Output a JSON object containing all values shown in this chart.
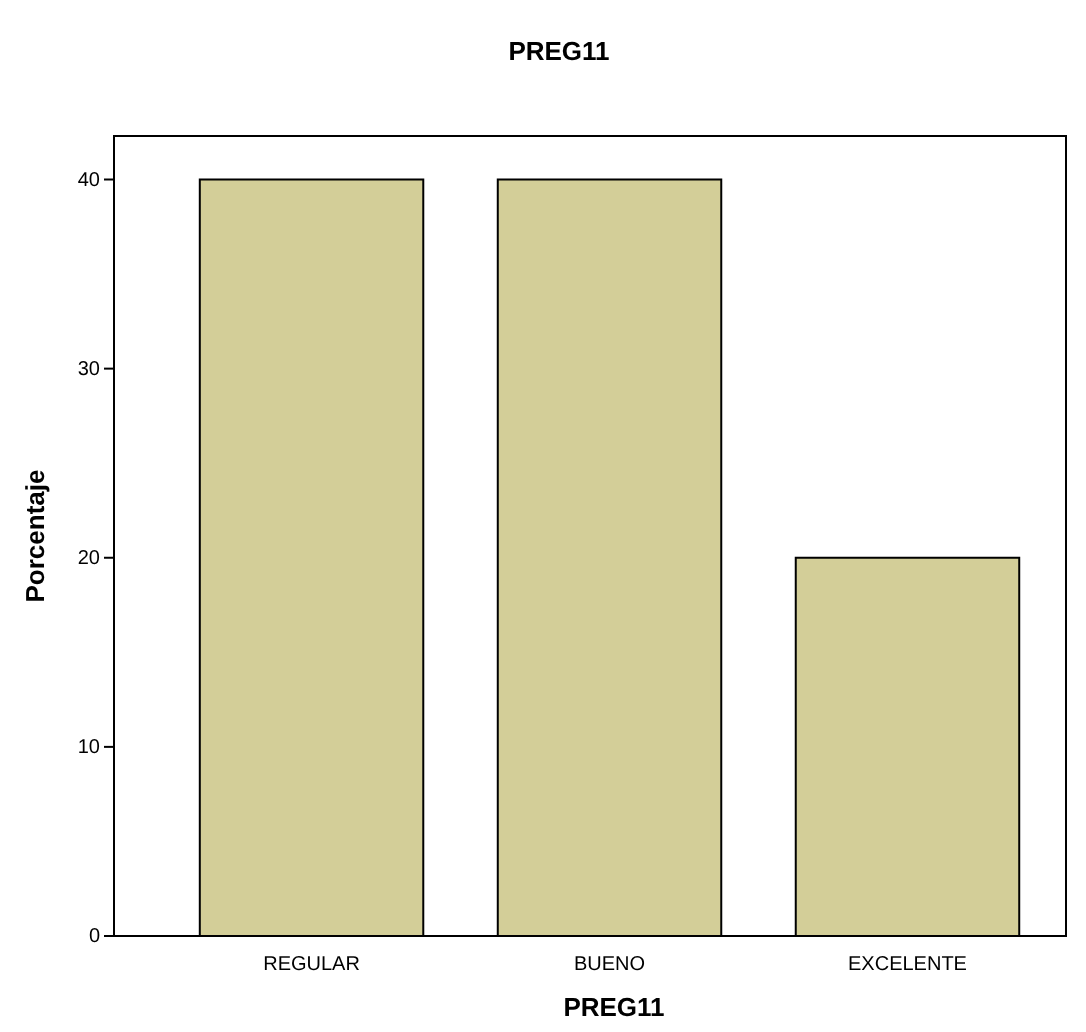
{
  "chart_data": {
    "type": "bar",
    "title": "PREG11",
    "xlabel": "PREG11",
    "ylabel": "Porcentaje",
    "categories": [
      "REGULAR",
      "BUENO",
      "EXCELENTE"
    ],
    "values": [
      40,
      40,
      20
    ],
    "color": "#d3ce98",
    "ylim": [
      0,
      42.3
    ],
    "yticks": [
      0,
      10,
      20,
      30,
      40
    ],
    "grid": false
  }
}
